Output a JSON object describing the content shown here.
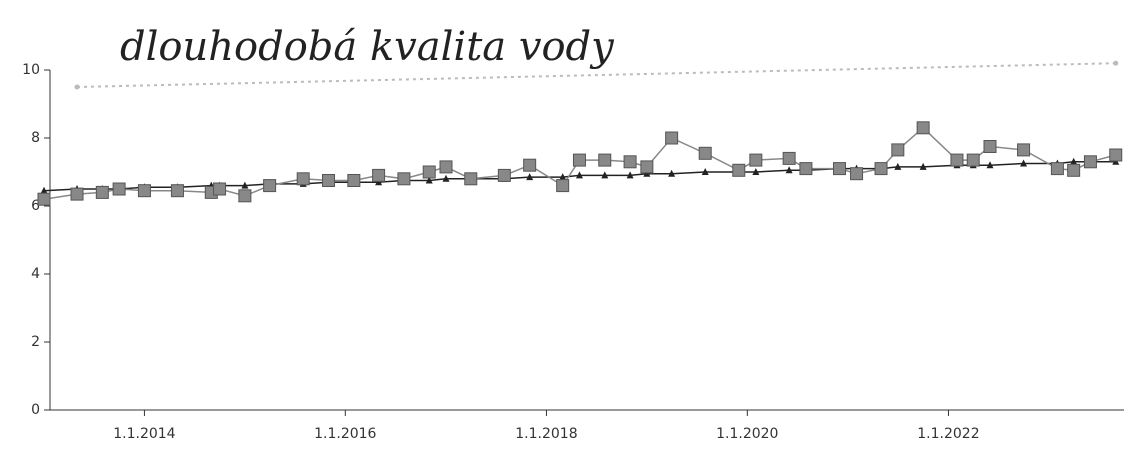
{
  "chart_data": {
    "type": "line",
    "title": "dlouhodobá kvalita vody",
    "xlim": [
      "2013-01-01",
      "2023-10-01"
    ],
    "xticks": [
      {
        "value": "2014-01-01",
        "label": "1.1.2014"
      },
      {
        "value": "2016-01-01",
        "label": "1.1.2016"
      },
      {
        "value": "2018-01-01",
        "label": "1.1.2018"
      },
      {
        "value": "2020-01-01",
        "label": "1.1.2020"
      },
      {
        "value": "2022-01-01",
        "label": "1.1.2022"
      }
    ],
    "ylim": [
      0,
      10
    ],
    "yticks": [
      0,
      2,
      4,
      6,
      8,
      10
    ],
    "series": [
      {
        "color": "#bbbbbb",
        "marker": "dot",
        "dash": true,
        "x": [
          "2013-05-01",
          "2023-09-01"
        ],
        "values": [
          9.5,
          10.2
        ]
      },
      {
        "color": "#222222",
        "marker": "triangle",
        "x": [
          "2013-01-01",
          "2013-05-01",
          "2013-08-01",
          "2013-10-01",
          "2014-01-01",
          "2014-05-01",
          "2014-09-01",
          "2014-10-01",
          "2015-01-01",
          "2015-04-01",
          "2015-08-01",
          "2015-11-01",
          "2016-02-01",
          "2016-05-01",
          "2016-08-01",
          "2016-11-01",
          "2017-01-01",
          "2017-04-01",
          "2017-08-01",
          "2017-11-01",
          "2018-03-01",
          "2018-05-01",
          "2018-08-01",
          "2018-11-01",
          "2019-01-01",
          "2019-04-01",
          "2019-08-01",
          "2019-12-01",
          "2020-02-01",
          "2020-06-01",
          "2020-08-01",
          "2020-12-01",
          "2021-02-01",
          "2021-05-01",
          "2021-07-01",
          "2021-10-01",
          "2022-02-01",
          "2022-04-01",
          "2022-06-01",
          "2022-10-01",
          "2023-02-01",
          "2023-04-01",
          "2023-06-01",
          "2023-09-01"
        ],
        "values": [
          6.45,
          6.5,
          6.5,
          6.5,
          6.55,
          6.55,
          6.6,
          6.6,
          6.6,
          6.65,
          6.65,
          6.7,
          6.7,
          6.7,
          6.75,
          6.75,
          6.8,
          6.8,
          6.8,
          6.85,
          6.85,
          6.9,
          6.9,
          6.9,
          6.95,
          6.95,
          7.0,
          7.0,
          7.0,
          7.05,
          7.05,
          7.1,
          7.1,
          7.1,
          7.15,
          7.15,
          7.2,
          7.2,
          7.2,
          7.25,
          7.25,
          7.3,
          7.3,
          7.3
        ]
      },
      {
        "color": "#888888",
        "marker": "square",
        "x": [
          "2013-01-01",
          "2013-05-01",
          "2013-08-01",
          "2013-10-01",
          "2014-01-01",
          "2014-05-01",
          "2014-09-01",
          "2014-10-01",
          "2015-01-01",
          "2015-04-01",
          "2015-08-01",
          "2015-11-01",
          "2016-02-01",
          "2016-05-01",
          "2016-08-01",
          "2016-11-01",
          "2017-01-01",
          "2017-04-01",
          "2017-08-01",
          "2017-11-01",
          "2018-03-01",
          "2018-05-01",
          "2018-08-01",
          "2018-11-01",
          "2019-01-01",
          "2019-04-01",
          "2019-08-01",
          "2019-12-01",
          "2020-02-01",
          "2020-06-01",
          "2020-08-01",
          "2020-12-01",
          "2021-02-01",
          "2021-05-01",
          "2021-07-01",
          "2021-10-01",
          "2022-02-01",
          "2022-04-01",
          "2022-06-01",
          "2022-10-01",
          "2023-02-01",
          "2023-04-01",
          "2023-06-01",
          "2023-09-01"
        ],
        "values": [
          6.2,
          6.35,
          6.4,
          6.5,
          6.45,
          6.45,
          6.4,
          6.5,
          6.3,
          6.6,
          6.8,
          6.75,
          6.75,
          6.9,
          6.8,
          7.0,
          7.15,
          6.8,
          6.9,
          7.2,
          6.6,
          7.35,
          7.35,
          7.3,
          7.15,
          8.0,
          7.55,
          7.05,
          7.35,
          7.4,
          7.1,
          7.1,
          6.95,
          7.1,
          7.65,
          8.3,
          7.35,
          7.35,
          7.75,
          7.65,
          7.1,
          7.05,
          7.3,
          7.5
        ]
      }
    ]
  }
}
